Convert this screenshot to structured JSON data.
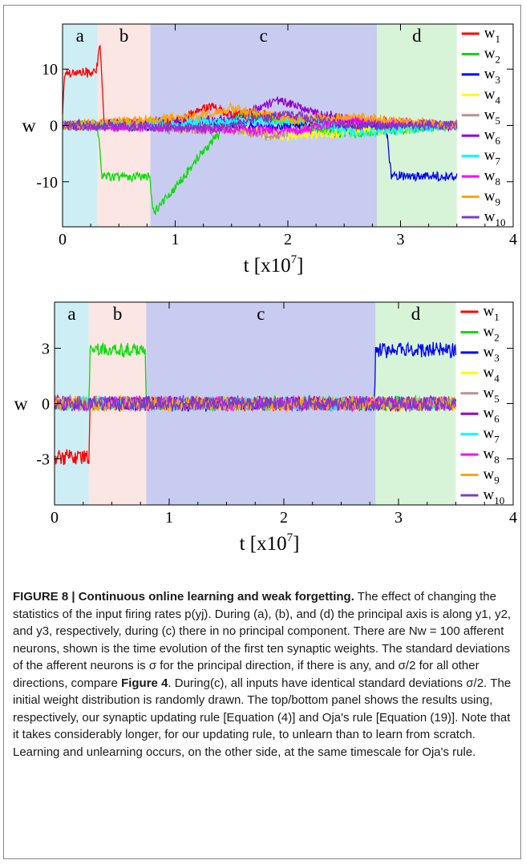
{
  "caption": {
    "label": "FIGURE 8 | Continuous online learning and weak forgetting.",
    "text": " The effect of changing the statistics of the input firing rates p(yj). During (a), (b), and (d) the principal axis is along y1, y2, and y3, respectively, during (c) there in no principal component. There are Nw = 100 afferent neurons, shown is the time evolution of the first ten synaptic weights. The standard deviations of the afferent neurons is σ for the principal direction, if there is any, and σ/2 for all other directions, compare ",
    "ref": "Figure 4",
    "text2": ". During(c), all inputs have identical standard deviations σ/2. The initial weight distribution is randomly drawn. The top/bottom panel shows the results using, respectively, our synaptic updating rule [Equation (4)] and Oja's rule [Equation (19)]. Note that it takes considerably longer, for our updating rule, to unlearn than to learn from scratch. Learning and unlearning occurs, on the other side, at the same timescale for Oja's rule."
  },
  "chart_data": [
    {
      "type": "line",
      "ylabel": "w",
      "xlabel_main": "t [x10",
      "xlabel_exp": "7",
      "xlabel_close": "]",
      "xlim": [
        0,
        4
      ],
      "ylim": [
        -18,
        18
      ],
      "xticks": [
        0,
        1,
        2,
        3,
        4
      ],
      "xtick_labels": [
        "0",
        "1",
        "2",
        "3",
        "4"
      ],
      "yticks": [
        10,
        0,
        -10
      ],
      "ytick_labels": [
        "10",
        "0",
        "-10"
      ],
      "phases": [
        {
          "label": "a",
          "start": 0.0,
          "end": 0.31,
          "color": "#cdeef4"
        },
        {
          "label": "b",
          "start": 0.31,
          "end": 0.78,
          "color": "#fbe6e4"
        },
        {
          "label": "c",
          "start": 0.78,
          "end": 2.79,
          "color": "#c8ccf0"
        },
        {
          "label": "d",
          "start": 2.79,
          "end": 3.5,
          "color": "#d8f4d8"
        }
      ],
      "series": [
        {
          "name": "w1",
          "color": "#ff0000",
          "path": [
            [
              0,
              2.5
            ],
            [
              0.02,
              9.4
            ],
            [
              0.3,
              9.4
            ],
            [
              0.33,
              15
            ],
            [
              0.37,
              0.2
            ],
            [
              1.0,
              0.5
            ],
            [
              1.3,
              3.5
            ],
            [
              1.5,
              2
            ],
            [
              2.0,
              1.5
            ],
            [
              2.5,
              0
            ],
            [
              3.5,
              0
            ]
          ]
        },
        {
          "name": "w2",
          "color": "#00e000",
          "path": [
            [
              0,
              0
            ],
            [
              0.31,
              0
            ],
            [
              0.35,
              -9
            ],
            [
              0.77,
              -9
            ],
            [
              0.81,
              -15.5
            ],
            [
              1.0,
              -11
            ],
            [
              1.4,
              -1
            ],
            [
              1.6,
              2
            ],
            [
              2.0,
              0.5
            ],
            [
              2.5,
              -1.5
            ],
            [
              3.5,
              0
            ]
          ]
        },
        {
          "name": "w3",
          "color": "#0000ff",
          "path": [
            [
              0,
              0
            ],
            [
              2.87,
              0
            ],
            [
              2.92,
              -9
            ],
            [
              3.5,
              -9
            ]
          ]
        },
        {
          "name": "w4",
          "color": "#ffff00",
          "path": [
            [
              0,
              0
            ],
            [
              1.5,
              -0.5
            ],
            [
              2.0,
              -2
            ],
            [
              2.6,
              -1
            ],
            [
              3.5,
              0
            ]
          ]
        },
        {
          "name": "w5",
          "color": "#bc8f8f",
          "path": [
            [
              0,
              0
            ],
            [
              1.6,
              -1
            ],
            [
              1.85,
              -2
            ],
            [
              2.4,
              0.5
            ],
            [
              3.5,
              0
            ]
          ]
        },
        {
          "name": "w6",
          "color": "#9400d3",
          "path": [
            [
              0,
              0
            ],
            [
              1.5,
              1
            ],
            [
              1.9,
              4.5
            ],
            [
              2.3,
              2
            ],
            [
              2.8,
              0
            ],
            [
              3.5,
              0
            ]
          ]
        },
        {
          "name": "w7",
          "color": "#00ffff",
          "path": [
            [
              0,
              0
            ],
            [
              2.2,
              1
            ],
            [
              2.6,
              -1.5
            ],
            [
              3.5,
              0
            ]
          ]
        },
        {
          "name": "w8",
          "color": "#ff00ff",
          "path": [
            [
              0,
              0
            ],
            [
              2.1,
              -1
            ],
            [
              2.5,
              1
            ],
            [
              3.5,
              0
            ]
          ]
        },
        {
          "name": "w9",
          "color": "#ffa500",
          "path": [
            [
              0,
              0
            ],
            [
              1.2,
              1.5
            ],
            [
              1.5,
              3
            ],
            [
              2.0,
              1
            ],
            [
              2.6,
              1.5
            ],
            [
              3.5,
              0
            ]
          ]
        },
        {
          "name": "w10",
          "color": "#7b3cc8",
          "path": [
            [
              0,
              0
            ],
            [
              1.4,
              -0.5
            ],
            [
              1.7,
              1
            ],
            [
              2.0,
              2
            ],
            [
              2.5,
              0
            ],
            [
              3.5,
              0
            ]
          ]
        }
      ],
      "noise": 1.0
    },
    {
      "type": "line",
      "ylabel": "w",
      "xlabel_main": "t [x10",
      "xlabel_exp": "7",
      "xlabel_close": "]",
      "xlim": [
        0,
        4
      ],
      "ylim": [
        -5.5,
        5.5
      ],
      "xticks": [
        0,
        1,
        2,
        3,
        4
      ],
      "xtick_labels": [
        "0",
        "1",
        "2",
        "3",
        "4"
      ],
      "yticks": [
        3,
        0,
        -3
      ],
      "ytick_labels": [
        "3",
        "0",
        "-3"
      ],
      "phases": [
        {
          "label": "a",
          "start": 0.0,
          "end": 0.3,
          "color": "#cdeef4"
        },
        {
          "label": "b",
          "start": 0.3,
          "end": 0.8,
          "color": "#fbe6e4"
        },
        {
          "label": "c",
          "start": 0.8,
          "end": 2.8,
          "color": "#c8ccf0"
        },
        {
          "label": "d",
          "start": 2.8,
          "end": 3.5,
          "color": "#d8f4d8"
        }
      ],
      "series": [
        {
          "name": "w1",
          "color": "#ff0000",
          "path": [
            [
              0,
              -2.9
            ],
            [
              0.3,
              -2.9
            ],
            [
              0.31,
              0
            ],
            [
              3.5,
              0
            ]
          ]
        },
        {
          "name": "w2",
          "color": "#00e000",
          "path": [
            [
              0,
              0
            ],
            [
              0.3,
              0
            ],
            [
              0.31,
              2.9
            ],
            [
              0.79,
              2.9
            ],
            [
              0.8,
              0
            ],
            [
              3.5,
              0
            ]
          ]
        },
        {
          "name": "w3",
          "color": "#0000ff",
          "path": [
            [
              0,
              0
            ],
            [
              2.79,
              0
            ],
            [
              2.8,
              2.9
            ],
            [
              3.5,
              2.9
            ]
          ]
        },
        {
          "name": "w4",
          "color": "#ffff00",
          "path": [
            [
              0,
              0
            ],
            [
              3.5,
              0
            ]
          ]
        },
        {
          "name": "w5",
          "color": "#bc8f8f",
          "path": [
            [
              0,
              0
            ],
            [
              3.5,
              0
            ]
          ]
        },
        {
          "name": "w6",
          "color": "#9400d3",
          "path": [
            [
              0,
              0
            ],
            [
              3.5,
              0
            ]
          ]
        },
        {
          "name": "w7",
          "color": "#00ffff",
          "path": [
            [
              0,
              0
            ],
            [
              3.5,
              0
            ]
          ]
        },
        {
          "name": "w8",
          "color": "#ff00ff",
          "path": [
            [
              0,
              0
            ],
            [
              3.5,
              0
            ]
          ]
        },
        {
          "name": "w9",
          "color": "#ffa500",
          "path": [
            [
              0,
              0
            ],
            [
              3.5,
              0
            ]
          ]
        },
        {
          "name": "w10",
          "color": "#7b3cc8",
          "path": [
            [
              0,
              0
            ],
            [
              3.5,
              0
            ]
          ]
        }
      ],
      "noise": 0.45
    }
  ],
  "legend_labels": [
    "w1",
    "w2",
    "w3",
    "w4",
    "w5",
    "w6",
    "w7",
    "w8",
    "w9",
    "w10"
  ]
}
